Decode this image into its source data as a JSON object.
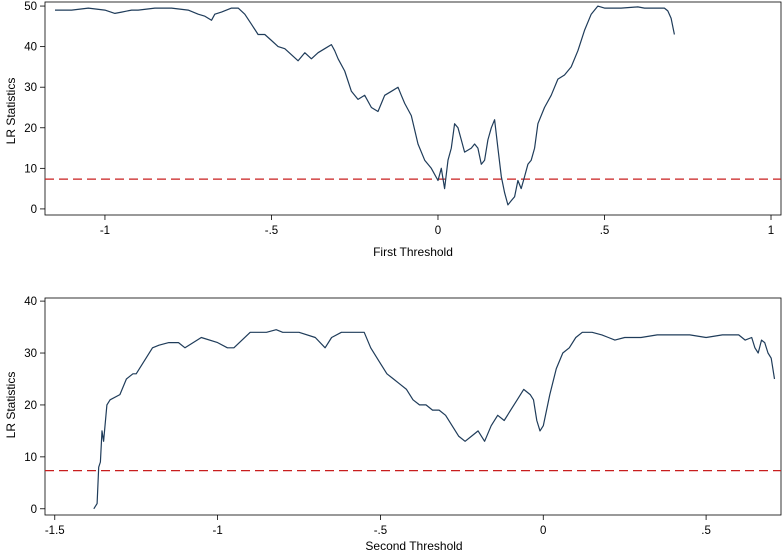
{
  "chart_data": [
    {
      "type": "line",
      "xlabel": "First Threshold",
      "ylabel": "LR Statistics",
      "xlim": [
        -1.18,
        1.03
      ],
      "ylim": [
        -1.5,
        51
      ],
      "xticks": [
        -1,
        -0.5,
        0,
        0.5,
        1
      ],
      "xtick_labels": [
        "-1",
        "-.5",
        "0",
        ".5",
        "1"
      ],
      "yticks": [
        0,
        10,
        20,
        30,
        40,
        50
      ],
      "ytick_labels": [
        "0",
        "10",
        "20",
        "30",
        "40",
        "50"
      ],
      "grid": false,
      "series": [
        {
          "color": "#1f3c5a",
          "x": [
            -1.15,
            -1.1,
            -1.05,
            -1.0,
            -0.97,
            -0.95,
            -0.92,
            -0.9,
            -0.85,
            -0.8,
            -0.75,
            -0.72,
            -0.7,
            -0.68,
            -0.67,
            -0.65,
            -0.62,
            -0.6,
            -0.58,
            -0.56,
            -0.54,
            -0.52,
            -0.5,
            -0.48,
            -0.46,
            -0.44,
            -0.42,
            -0.4,
            -0.38,
            -0.36,
            -0.34,
            -0.32,
            -0.31,
            -0.3,
            -0.28,
            -0.26,
            -0.24,
            -0.22,
            -0.2,
            -0.18,
            -0.16,
            -0.14,
            -0.12,
            -0.11,
            -0.1,
            -0.08,
            -0.06,
            -0.04,
            -0.02,
            0.0,
            0.01,
            0.02,
            0.03,
            0.04,
            0.05,
            0.06,
            0.07,
            0.08,
            0.1,
            0.11,
            0.12,
            0.13,
            0.14,
            0.15,
            0.16,
            0.17,
            0.18,
            0.19,
            0.2,
            0.21,
            0.22,
            0.23,
            0.24,
            0.25,
            0.26,
            0.27,
            0.28,
            0.29,
            0.3,
            0.32,
            0.34,
            0.36,
            0.38,
            0.4,
            0.42,
            0.44,
            0.46,
            0.48,
            0.5,
            0.52,
            0.55,
            0.6,
            0.62,
            0.65,
            0.67,
            0.68,
            0.69,
            0.7,
            0.71
          ],
          "y": [
            49,
            49,
            49.5,
            49,
            48.2,
            48.5,
            49,
            49,
            49.5,
            49.5,
            49,
            48,
            47.5,
            46.5,
            48,
            48.5,
            49.5,
            49.5,
            48,
            45.5,
            43,
            43,
            41.5,
            40,
            39.5,
            38,
            36.5,
            38.5,
            37,
            38.5,
            39.5,
            40.5,
            39,
            37,
            34,
            29,
            27,
            28,
            25,
            24,
            28,
            29,
            30,
            28,
            26,
            23,
            16,
            12,
            10,
            7,
            10,
            5,
            12,
            15,
            21,
            20,
            17,
            14,
            15,
            16,
            15,
            11,
            12,
            17,
            20,
            22,
            15,
            8,
            4,
            1,
            2,
            3,
            7,
            5,
            8,
            11,
            12,
            15,
            21,
            25,
            28,
            32,
            33,
            35,
            39,
            44,
            48,
            50,
            49.5,
            49.5,
            49.5,
            49.8,
            49.5,
            49.5,
            49.5,
            49.5,
            48.8,
            47,
            43
          ]
        }
      ],
      "reference_line": {
        "y": 7.35,
        "color": "#c81e1e",
        "style": "dashed"
      }
    },
    {
      "type": "line",
      "xlabel": "Second Threshold",
      "ylabel": "LR Statistics",
      "xlim": [
        -1.53,
        0.73
      ],
      "ylim": [
        -1.2,
        40.6
      ],
      "xticks": [
        -1.5,
        -1,
        -0.5,
        0,
        0.5
      ],
      "xtick_labels": [
        "-1.5",
        "-1",
        "-.5",
        "0",
        ".5"
      ],
      "yticks": [
        0,
        10,
        20,
        30,
        40
      ],
      "ytick_labels": [
        "0",
        "10",
        "20",
        "30",
        "40"
      ],
      "grid": false,
      "series": [
        {
          "color": "#1f3c5a",
          "x": [
            -1.38,
            -1.37,
            -1.365,
            -1.36,
            -1.355,
            -1.35,
            -1.34,
            -1.33,
            -1.3,
            -1.28,
            -1.26,
            -1.25,
            -1.22,
            -1.2,
            -1.18,
            -1.15,
            -1.12,
            -1.1,
            -1.05,
            -1.0,
            -0.97,
            -0.95,
            -0.9,
            -0.85,
            -0.82,
            -0.8,
            -0.75,
            -0.7,
            -0.67,
            -0.65,
            -0.62,
            -0.6,
            -0.58,
            -0.55,
            -0.53,
            -0.5,
            -0.48,
            -0.46,
            -0.44,
            -0.42,
            -0.4,
            -0.38,
            -0.36,
            -0.34,
            -0.32,
            -0.3,
            -0.28,
            -0.26,
            -0.24,
            -0.22,
            -0.2,
            -0.18,
            -0.16,
            -0.14,
            -0.12,
            -0.1,
            -0.08,
            -0.06,
            -0.04,
            -0.03,
            -0.02,
            -0.01,
            0.0,
            0.02,
            0.04,
            0.06,
            0.08,
            0.1,
            0.12,
            0.15,
            0.18,
            0.2,
            0.22,
            0.25,
            0.3,
            0.35,
            0.4,
            0.45,
            0.5,
            0.55,
            0.6,
            0.62,
            0.64,
            0.65,
            0.66,
            0.67,
            0.68,
            0.69,
            0.7,
            0.71
          ],
          "y": [
            0,
            1,
            8,
            9,
            15,
            13,
            20,
            21,
            22,
            25,
            26,
            26,
            29,
            31,
            31.5,
            32,
            32,
            31,
            33,
            32,
            31,
            31,
            34,
            34,
            34.5,
            34,
            34,
            33,
            31,
            33,
            34,
            34,
            34,
            34,
            31,
            28,
            26,
            25,
            24,
            23,
            21,
            20,
            20,
            19,
            19,
            18,
            16,
            14,
            13,
            14,
            15,
            13,
            16,
            18,
            17,
            19,
            21,
            23,
            22,
            21,
            17,
            15,
            16,
            22,
            27,
            30,
            31,
            33,
            34,
            34,
            33.5,
            33,
            32.5,
            33,
            33,
            33.5,
            33.5,
            33.5,
            33,
            33.5,
            33.5,
            32.5,
            33,
            31,
            30,
            32.5,
            32,
            30,
            29,
            25
          ]
        }
      ],
      "reference_line": {
        "y": 7.35,
        "color": "#c81e1e",
        "style": "dashed"
      }
    }
  ]
}
